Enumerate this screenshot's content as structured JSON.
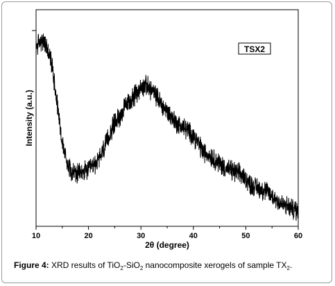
{
  "chart_data": {
    "type": "line",
    "xlabel": "2θ (degree)",
    "ylabel": "Intensity (a.u.)",
    "xlim": [
      10,
      60
    ],
    "x_ticks": [
      10,
      20,
      30,
      40,
      50,
      60
    ],
    "y_ticks_labeled": false,
    "grid": false,
    "legend": {
      "label": "TSX2",
      "placement": "top-right"
    },
    "series": [
      {
        "name": "TSX2",
        "color": "#000000",
        "x": [
          10,
          11,
          12,
          13,
          14,
          15,
          16,
          17,
          18,
          19,
          20,
          21,
          22,
          23,
          24,
          25,
          26,
          27,
          28,
          29,
          30,
          31,
          32,
          33,
          34,
          35,
          36,
          37,
          38,
          39,
          40,
          41,
          42,
          43,
          44,
          45,
          46,
          47,
          48,
          49,
          50,
          51,
          52,
          53,
          54,
          55,
          56,
          57,
          58,
          59,
          60
        ],
        "y": [
          0.83,
          0.86,
          0.83,
          0.75,
          0.58,
          0.38,
          0.29,
          0.25,
          0.24,
          0.25,
          0.26,
          0.28,
          0.31,
          0.36,
          0.42,
          0.48,
          0.51,
          0.55,
          0.58,
          0.61,
          0.64,
          0.65,
          0.63,
          0.6,
          0.56,
          0.53,
          0.5,
          0.47,
          0.46,
          0.44,
          0.42,
          0.38,
          0.34,
          0.33,
          0.31,
          0.29,
          0.27,
          0.26,
          0.25,
          0.24,
          0.22,
          0.19,
          0.18,
          0.17,
          0.16,
          0.14,
          0.12,
          0.1,
          0.09,
          0.08,
          0.07
        ]
      }
    ]
  },
  "caption": {
    "label": "Figure 4:",
    "text_1": " XRD results of TiO",
    "sub_1": "2",
    "text_2": "-SiO",
    "sub_2": "2",
    "text_3": " nanocomposite xerogels of sample TX",
    "sub_3": "2",
    "text_4": "."
  }
}
